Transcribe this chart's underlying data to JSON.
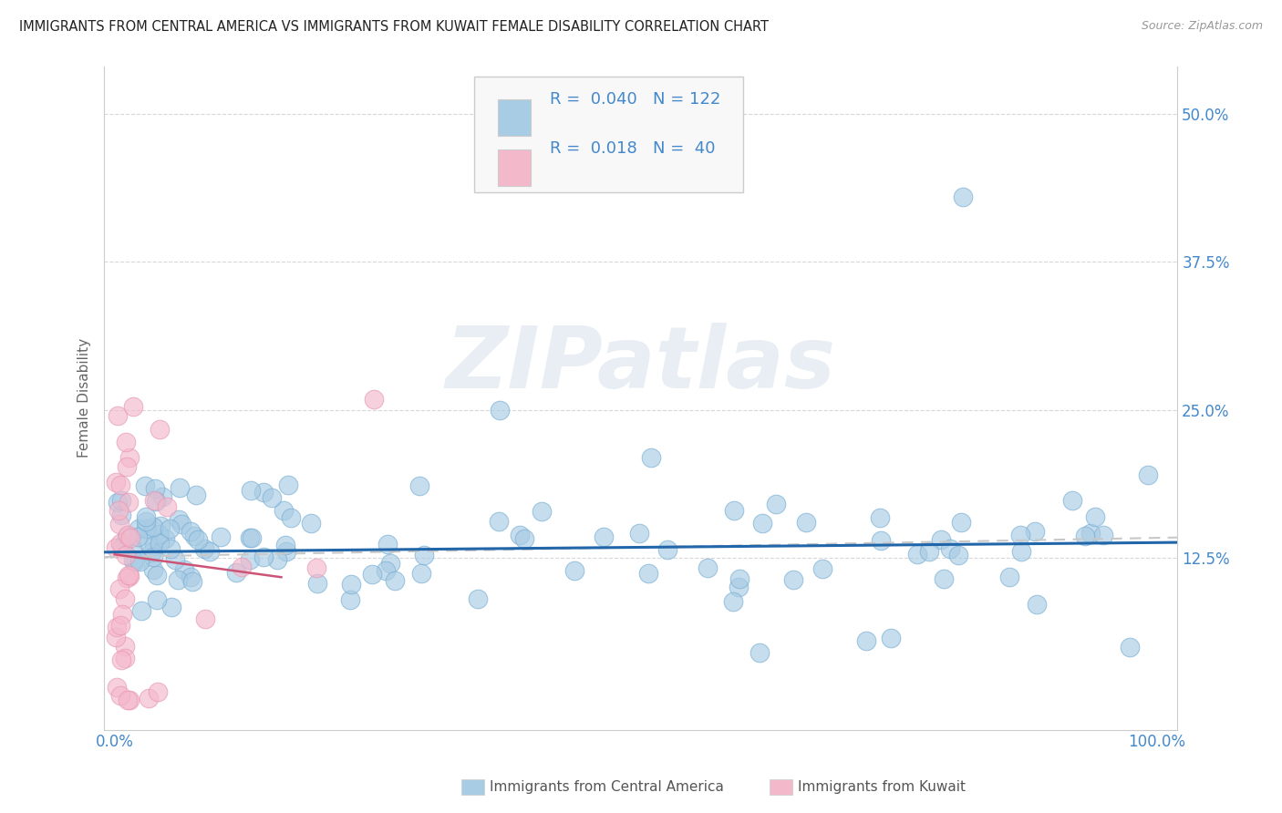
{
  "title": "IMMIGRANTS FROM CENTRAL AMERICA VS IMMIGRANTS FROM KUWAIT FEMALE DISABILITY CORRELATION CHART",
  "source": "Source: ZipAtlas.com",
  "ylabel": "Female Disability",
  "ytick_vals": [
    0.0,
    0.125,
    0.25,
    0.375,
    0.5
  ],
  "ytick_labels": [
    "",
    "12.5%",
    "25.0%",
    "37.5%",
    "50.0%"
  ],
  "xtick_vals": [
    0.0,
    1.0
  ],
  "xtick_labels": [
    "0.0%",
    "100.0%"
  ],
  "legend1_R": "0.040",
  "legend1_N": "122",
  "legend2_R": "0.018",
  "legend2_N": "40",
  "color_blue": "#a8cce4",
  "color_blue_edge": "#7aafd4",
  "color_blue_line": "#2266aa",
  "color_pink": "#f4b8cb",
  "color_pink_edge": "#e898b4",
  "color_pink_line": "#cc5577",
  "color_dashed": "#c8c8c8",
  "watermark_text": "ZIPatlas",
  "watermark_color": "#e8eef4",
  "legend_box_color": "#f8f8f8",
  "legend_border_color": "#cccccc",
  "axis_color": "#cccccc",
  "tick_label_color": "#4488cc",
  "ylabel_color": "#666666",
  "title_color": "#222222",
  "source_color": "#999999",
  "bottom_label_color": "#555555",
  "blue_line_intercept": 0.13,
  "blue_line_slope": 0.008,
  "dashed_line_intercept": 0.126,
  "dashed_line_slope": 0.016,
  "pink_line_intercept": 0.128,
  "pink_line_slope": -0.12,
  "pink_line_xmax": 0.16,
  "ylim_min": -0.02,
  "ylim_max": 0.54,
  "xlim_min": -0.01,
  "xlim_max": 1.02
}
